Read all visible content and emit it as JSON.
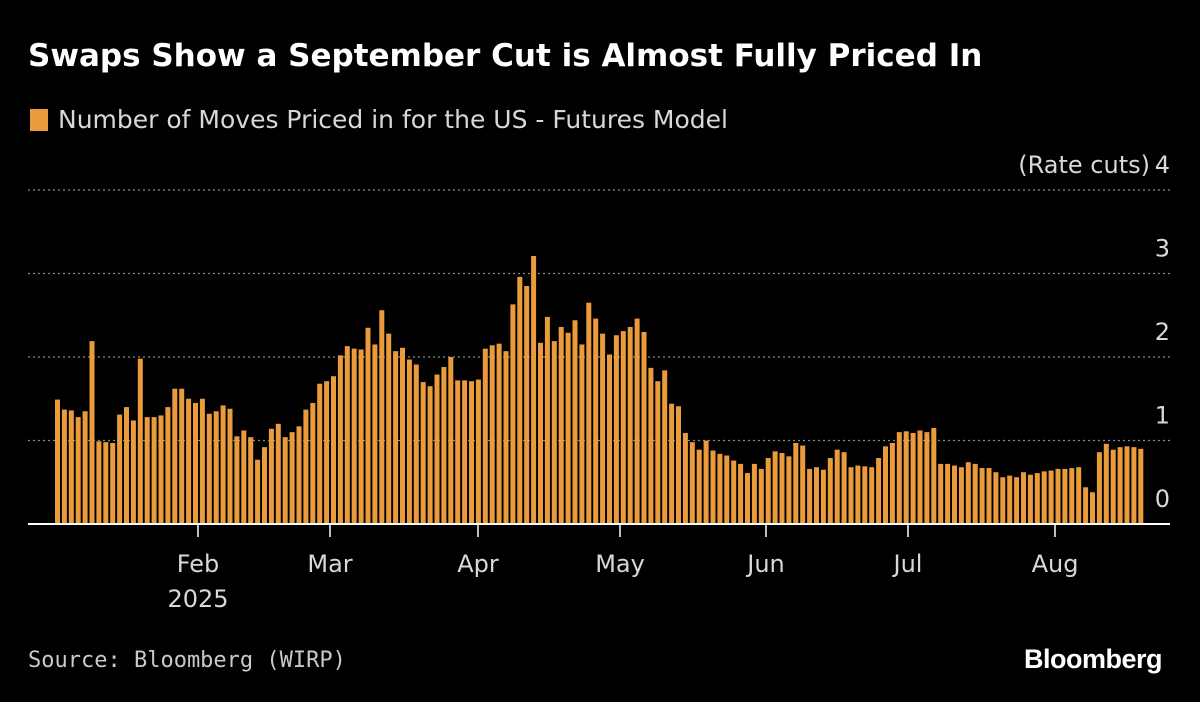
{
  "title": "Swaps Show a September Cut is Almost Fully Priced In",
  "legend": {
    "label": "Number of Moves Priced in for the US - Futures Model",
    "color": "#ea9c3d"
  },
  "source": "Source: Bloomberg (WIRP)",
  "brand": "Bloomberg",
  "chart_data": {
    "type": "bar",
    "title": "Swaps Show a September Cut is Almost Fully Priced In",
    "ylabel": "(Rate cuts)",
    "ylim": [
      0,
      4
    ],
    "yticks": [
      "0",
      "1",
      "2",
      "3",
      "4"
    ],
    "xlabel": "",
    "x_ticks": [
      "Feb",
      "Mar",
      "Apr",
      "May",
      "Jun",
      "Jul",
      "Aug"
    ],
    "year_label": "2025",
    "grid": "horizontal dotted",
    "legend_position": "top-left",
    "series": [
      {
        "name": "Number of Moves Priced in for the US - Futures Model",
        "color": "#ea9c3d",
        "values": [
          1.49,
          1.37,
          1.36,
          1.28,
          1.35,
          2.19,
          0.99,
          0.98,
          0.97,
          1.31,
          1.4,
          1.24,
          1.98,
          1.28,
          1.28,
          1.3,
          1.4,
          1.62,
          1.62,
          1.5,
          1.45,
          1.5,
          1.32,
          1.35,
          1.42,
          1.38,
          1.05,
          1.12,
          1.04,
          0.77,
          0.92,
          1.14,
          1.2,
          1.04,
          1.1,
          1.17,
          1.37,
          1.45,
          1.68,
          1.71,
          1.77,
          2.02,
          2.13,
          2.1,
          2.09,
          2.35,
          2.15,
          2.56,
          2.28,
          2.07,
          2.11,
          1.97,
          1.91,
          1.7,
          1.65,
          1.79,
          1.88,
          2.0,
          1.72,
          1.72,
          1.71,
          1.73,
          2.1,
          2.14,
          2.16,
          2.07,
          2.63,
          2.96,
          2.85,
          3.21,
          2.17,
          2.48,
          2.19,
          2.36,
          2.29,
          2.44,
          2.15,
          2.65,
          2.46,
          2.28,
          2.03,
          2.26,
          2.31,
          2.36,
          2.46,
          2.3,
          1.87,
          1.71,
          1.84,
          1.44,
          1.41,
          1.09,
          0.98,
          0.89,
          1.0,
          0.88,
          0.84,
          0.82,
          0.76,
          0.72,
          0.61,
          0.72,
          0.66,
          0.79,
          0.87,
          0.85,
          0.81,
          0.97,
          0.94,
          0.66,
          0.68,
          0.65,
          0.79,
          0.89,
          0.86,
          0.68,
          0.7,
          0.69,
          0.68,
          0.79,
          0.93,
          0.97,
          1.1,
          1.11,
          1.09,
          1.12,
          1.1,
          1.15,
          0.72,
          0.72,
          0.7,
          0.68,
          0.74,
          0.72,
          0.67,
          0.67,
          0.62,
          0.56,
          0.58,
          0.56,
          0.62,
          0.59,
          0.61,
          0.63,
          0.64,
          0.66,
          0.66,
          0.67,
          0.68,
          0.44,
          0.38,
          0.86,
          0.96,
          0.89,
          0.92,
          0.93,
          0.92,
          0.9
        ]
      }
    ]
  }
}
